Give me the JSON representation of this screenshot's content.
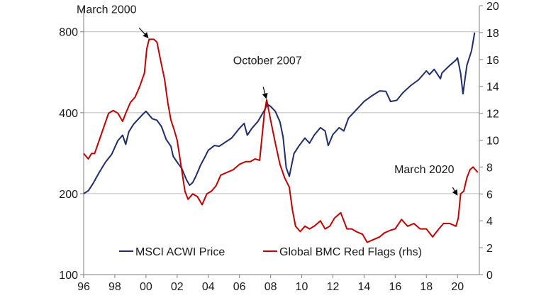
{
  "chart_data": {
    "type": "line",
    "title": "",
    "xlabel": "",
    "ylabel": "",
    "y2label": "",
    "x_tick_labels": [
      "96",
      "98",
      "00",
      "02",
      "04",
      "06",
      "08",
      "10",
      "12",
      "14",
      "16",
      "18",
      "20"
    ],
    "x_tick_years": [
      1996,
      1998,
      2000,
      2002,
      2004,
      2006,
      2008,
      2010,
      2012,
      2014,
      2016,
      2018,
      2020
    ],
    "xlim": [
      1996,
      2021.4
    ],
    "y_left": {
      "scale": "log",
      "lim": [
        100,
        1000
      ],
      "ticks": [
        100,
        200,
        400,
        800
      ],
      "tick_labels": [
        "100",
        "200",
        "400",
        "800"
      ]
    },
    "y_right": {
      "scale": "linear",
      "lim": [
        0,
        20
      ],
      "ticks": [
        0,
        2,
        4,
        6,
        8,
        10,
        12,
        14,
        16,
        18,
        20
      ],
      "tick_labels": [
        "0",
        "2",
        "4",
        "6",
        "8",
        "10",
        "12",
        "14",
        "16",
        "18",
        "20"
      ]
    },
    "grid": "horizontal",
    "legend": "bottom-center",
    "colors": {
      "msci": "#1f2d6b",
      "bmc": "#c00000",
      "grid": "#bfbfbf",
      "axis": "#7f7f7f"
    },
    "series": [
      {
        "name": "MSCI ACWI Price",
        "axis": "left",
        "x": [
          1996.0,
          1996.3,
          1996.6,
          1997.0,
          1997.4,
          1997.8,
          1998.2,
          1998.5,
          1998.7,
          1998.9,
          1999.2,
          1999.5,
          1999.8,
          2000.0,
          2000.2,
          2000.4,
          2000.7,
          2001.0,
          2001.3,
          2001.6,
          2001.75,
          2002.0,
          2002.3,
          2002.6,
          2002.8,
          2003.0,
          2003.2,
          2003.5,
          2003.8,
          2004.0,
          2004.4,
          2004.7,
          2005.0,
          2005.5,
          2006.0,
          2006.3,
          2006.5,
          2006.8,
          2007.2,
          2007.6,
          2007.8,
          2008.0,
          2008.3,
          2008.6,
          2008.8,
          2009.0,
          2009.2,
          2009.5,
          2009.8,
          2010.2,
          2010.5,
          2010.8,
          2011.2,
          2011.5,
          2011.7,
          2012.0,
          2012.4,
          2012.7,
          2013.0,
          2013.5,
          2014.0,
          2014.5,
          2015.0,
          2015.4,
          2015.7,
          2016.1,
          2016.5,
          2017.0,
          2017.5,
          2018.0,
          2018.2,
          2018.5,
          2018.9,
          2019.0,
          2019.5,
          2019.9,
          2020.0,
          2020.2,
          2020.35,
          2020.6,
          2020.9,
          2021.1
        ],
        "values": [
          200,
          205,
          218,
          240,
          262,
          280,
          315,
          330,
          305,
          340,
          362,
          378,
          395,
          405,
          392,
          380,
          375,
          355,
          318,
          300,
          275,
          262,
          248,
          225,
          215,
          220,
          232,
          255,
          275,
          290,
          302,
          300,
          308,
          322,
          350,
          365,
          330,
          350,
          372,
          408,
          430,
          422,
          405,
          370,
          325,
          250,
          232,
          282,
          300,
          322,
          308,
          330,
          352,
          342,
          302,
          332,
          352,
          342,
          382,
          410,
          440,
          462,
          482,
          480,
          440,
          445,
          475,
          505,
          530,
          572,
          555,
          580,
          535,
          562,
          600,
          628,
          640,
          560,
          470,
          600,
          680,
          795
        ]
      },
      {
        "name": "Global BMC Red Flags (rhs)",
        "axis": "right",
        "x": [
          1996.0,
          1996.3,
          1996.5,
          1996.7,
          1997.0,
          1997.3,
          1997.6,
          1997.9,
          1998.2,
          1998.5,
          1998.7,
          1999.0,
          1999.3,
          1999.6,
          1999.9,
          2000.05,
          2000.2,
          2000.5,
          2000.7,
          2001.0,
          2001.2,
          2001.4,
          2001.6,
          2001.8,
          2002.0,
          2002.2,
          2002.5,
          2002.7,
          2003.0,
          2003.3,
          2003.6,
          2003.9,
          2004.2,
          2004.5,
          2004.8,
          2005.2,
          2005.6,
          2006.0,
          2006.4,
          2006.7,
          2007.0,
          2007.3,
          2007.6,
          2007.75,
          2008.0,
          2008.3,
          2008.6,
          2008.9,
          2009.2,
          2009.4,
          2009.6,
          2009.9,
          2010.2,
          2010.5,
          2010.8,
          2011.2,
          2011.5,
          2011.8,
          2012.1,
          2012.5,
          2012.9,
          2013.2,
          2013.5,
          2013.9,
          2014.2,
          2014.6,
          2015.0,
          2015.3,
          2015.7,
          2016.0,
          2016.4,
          2016.8,
          2017.2,
          2017.6,
          2018.0,
          2018.4,
          2018.8,
          2019.1,
          2019.5,
          2019.9,
          2020.05,
          2020.2,
          2020.4,
          2020.6,
          2020.8,
          2021.0,
          2021.3
        ],
        "values": [
          9,
          8.6,
          9,
          9,
          10,
          11,
          12,
          12.2,
          12,
          11.4,
          12,
          12.8,
          13.2,
          14,
          15,
          16.8,
          17.5,
          17.5,
          17.3,
          15.6,
          14.5,
          12.8,
          11.5,
          10.8,
          10,
          8.5,
          6.2,
          5.6,
          6,
          5.8,
          5.2,
          6,
          6.2,
          6.6,
          7.4,
          7.6,
          7.8,
          8.2,
          8.4,
          8.4,
          8.6,
          8.5,
          12,
          13,
          11.5,
          9.8,
          8.2,
          7.2,
          6.5,
          4.8,
          3.6,
          3.2,
          3.6,
          3.4,
          3.6,
          4,
          3.4,
          3.6,
          4.2,
          4.6,
          3.4,
          3.4,
          3.2,
          3,
          2.4,
          2.6,
          2.8,
          3.1,
          3.3,
          3.4,
          4.1,
          3.6,
          3.8,
          3.4,
          3.4,
          2.8,
          3.4,
          3.8,
          3.8,
          3.6,
          4.2,
          6,
          6.2,
          7.2,
          7.8,
          8,
          7.6
        ]
      }
    ],
    "annotations": [
      {
        "text": "March 2000",
        "x": 2000.2,
        "y_right": 17.5
      },
      {
        "text": "October 2007",
        "x": 2007.8,
        "y_right": 13
      },
      {
        "text": "March 2020",
        "x": 2020.05,
        "y_right": 5.8
      }
    ]
  }
}
